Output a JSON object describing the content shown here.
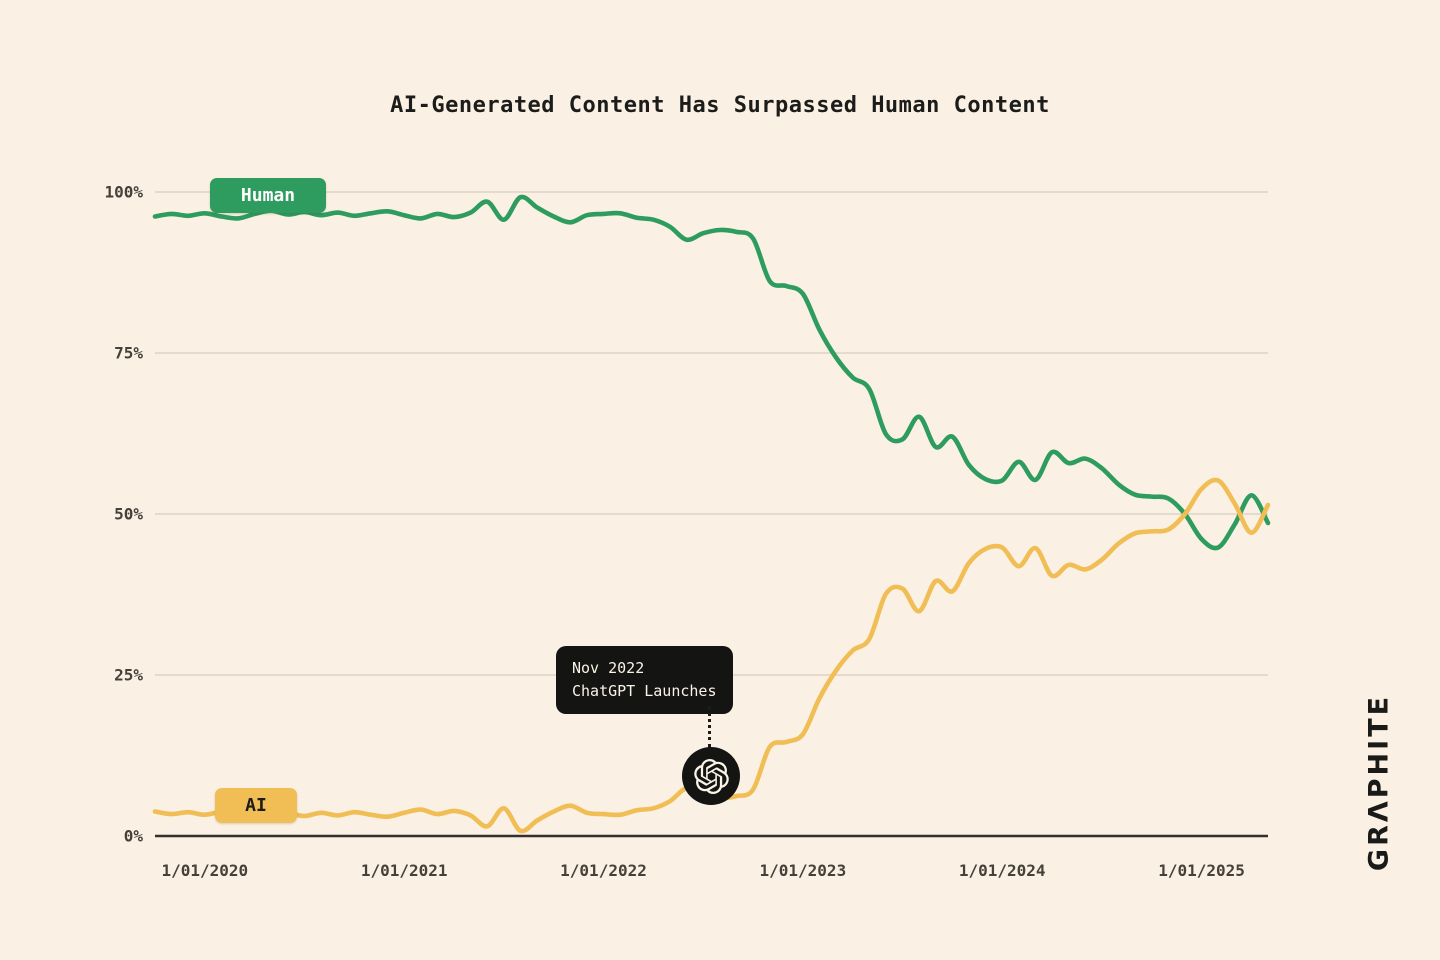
{
  "page": {
    "background_color": "#FAF1E4",
    "brand": "GRΛPHITE"
  },
  "chart_data": {
    "type": "line",
    "title": "AI-Generated Content Has Surpassed Human Content",
    "grid": "horizontal",
    "legend_position": "on-line-badges",
    "x_axis": {
      "domain_start": "2019-10",
      "domain_end": "2025-05",
      "frequency": "monthly",
      "tick_labels": [
        "1/01/2020",
        "1/01/2021",
        "1/01/2022",
        "1/01/2023",
        "1/01/2024",
        "1/01/2025"
      ],
      "tick_years": [
        2020,
        2021,
        2022,
        2023,
        2024,
        2025
      ]
    },
    "y_axis": {
      "unit": "%",
      "range": [
        0,
        100
      ],
      "tick_values": [
        0,
        25,
        50,
        75,
        100
      ],
      "tick_labels": [
        "0%",
        "25%",
        "50%",
        "75%",
        "100%"
      ]
    },
    "series": [
      {
        "name": "Human",
        "color": "#2F9C5F",
        "badge_text_color": "#FFFFFF",
        "values": [
          96.2,
          96.6,
          96.3,
          96.7,
          96.2,
          95.9,
          96.6,
          97.1,
          96.5,
          96.9,
          96.4,
          96.8,
          96.3,
          96.7,
          97.0,
          96.4,
          95.9,
          96.6,
          96.1,
          96.8,
          98.5,
          95.7,
          99.2,
          97.6,
          96.2,
          95.3,
          96.4,
          96.6,
          96.7,
          96.0,
          95.7,
          94.6,
          92.6,
          93.6,
          94.1,
          93.8,
          92.8,
          86.2,
          85.4,
          84.2,
          78.6,
          74.3,
          71.2,
          69.4,
          62.4,
          61.6,
          65.1,
          60.4,
          62.0,
          57.6,
          55.4,
          55.2,
          58.1,
          55.3,
          59.6,
          57.9,
          58.6,
          57.1,
          54.6,
          53.0,
          52.7,
          52.4,
          50.0,
          46.1,
          44.8,
          48.4,
          52.9,
          48.6
        ]
      },
      {
        "name": "AI",
        "color": "#F1BD55",
        "badge_text_color": "#1C1C1A",
        "values": [
          3.8,
          3.4,
          3.7,
          3.3,
          3.8,
          4.1,
          3.4,
          2.9,
          3.5,
          3.1,
          3.6,
          3.2,
          3.7,
          3.3,
          3.0,
          3.6,
          4.1,
          3.4,
          3.9,
          3.2,
          1.5,
          4.3,
          0.8,
          2.4,
          3.8,
          4.7,
          3.6,
          3.4,
          3.3,
          4.0,
          4.3,
          5.4,
          7.4,
          6.4,
          5.9,
          6.2,
          7.2,
          13.8,
          14.6,
          15.8,
          21.4,
          25.7,
          28.8,
          30.6,
          37.6,
          38.4,
          34.9,
          39.6,
          38.0,
          42.4,
          44.6,
          44.8,
          41.9,
          44.7,
          40.4,
          42.1,
          41.4,
          42.9,
          45.4,
          47.0,
          47.3,
          47.6,
          50.0,
          53.9,
          55.2,
          51.6,
          47.1,
          51.4
        ]
      }
    ],
    "annotation": {
      "line1": "Nov 2022",
      "line2": "ChatGPT Launches",
      "marker_icon": "openai-logo"
    }
  }
}
